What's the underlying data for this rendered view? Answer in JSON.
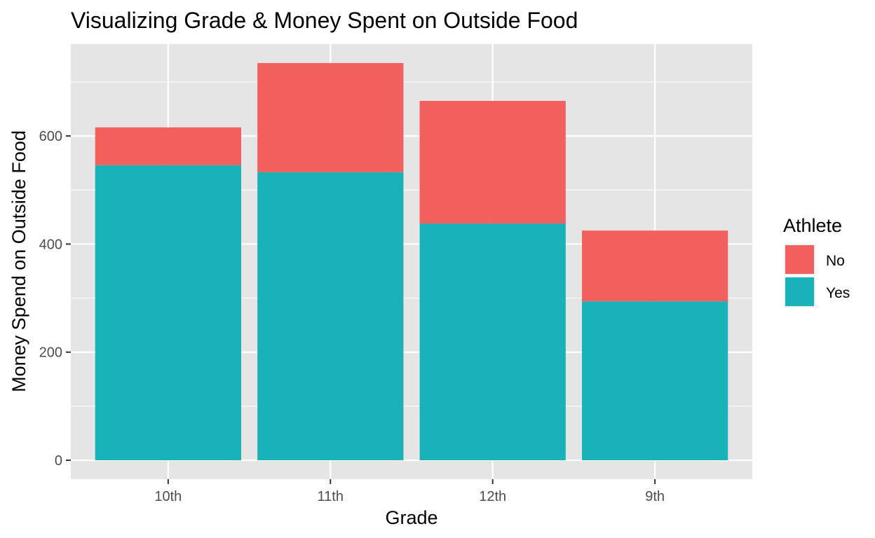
{
  "chart_data": {
    "type": "bar",
    "stacked": true,
    "title": "Visualizing Grade & Money Spent on Outside Food",
    "xlabel": "Grade",
    "ylabel": "Money Spend on Outside Food",
    "categories": [
      "10th",
      "11th",
      "12th",
      "9th"
    ],
    "series": [
      {
        "name": "Yes",
        "color": "#19B2B8",
        "values": [
          546,
          533,
          438,
          294
        ]
      },
      {
        "name": "No",
        "color": "#F2615D",
        "values": [
          70,
          202,
          227,
          131
        ]
      }
    ],
    "ylim": [
      -35,
      770
    ],
    "yticks": [
      0,
      200,
      400,
      600
    ],
    "ytick_labels": [
      "0",
      "200",
      "400",
      "600"
    ],
    "grid": true,
    "legend": {
      "title": "Athlete",
      "position": "right",
      "entries": [
        {
          "label": "No",
          "color": "#F2615D"
        },
        {
          "label": "Yes",
          "color": "#19B2B8"
        }
      ]
    },
    "panel_background": "#E5E5E5",
    "grid_color": "#FFFFFF"
  }
}
